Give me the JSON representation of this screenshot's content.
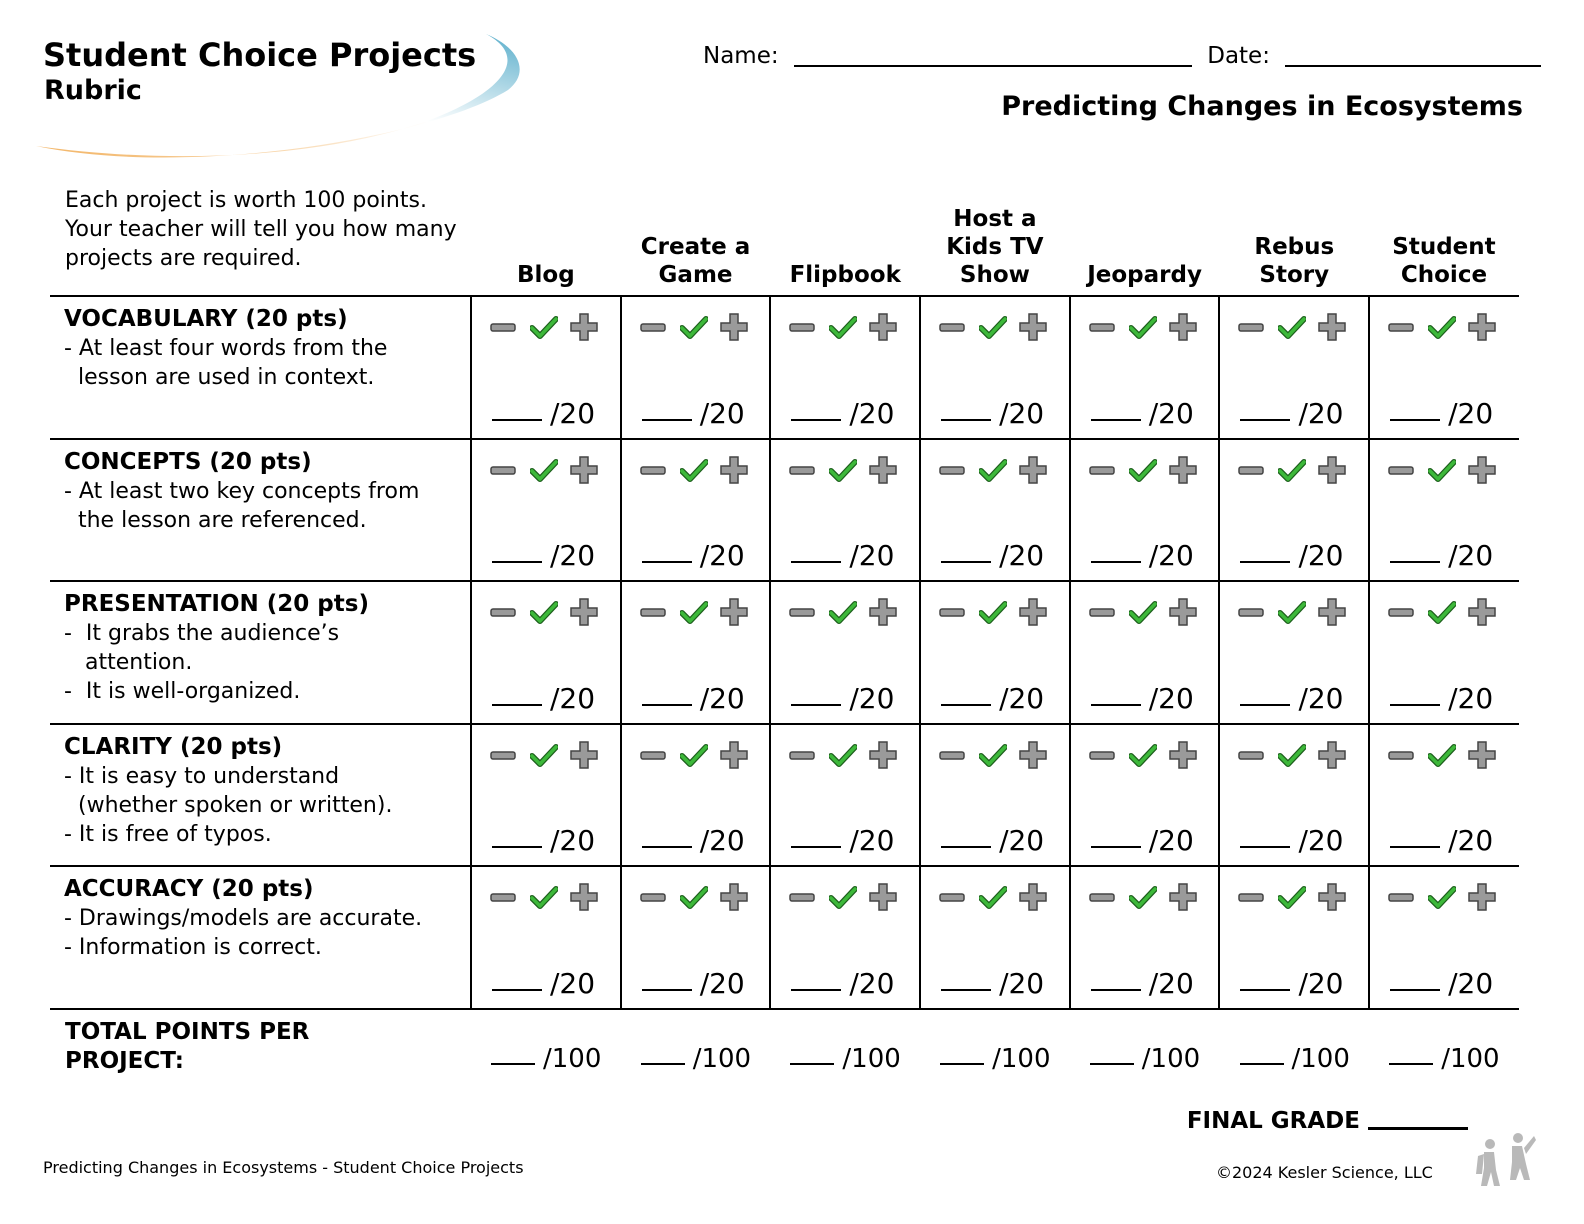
{
  "header": {
    "title": "Student Choice Projects",
    "subtitle": "Rubric",
    "name_label": "Name:",
    "date_label": "Date:",
    "topic": "Predicting Changes in Ecosystems"
  },
  "intro": "Each project is worth 100 points. Your teacher will tell you how many projects are required.",
  "columns": [
    [
      "Blog"
    ],
    [
      "Create a",
      "Game"
    ],
    [
      "Flipbook"
    ],
    [
      "Host a",
      "Kids TV",
      "Show"
    ],
    [
      "Jeopardy"
    ],
    [
      "Rebus",
      "Story"
    ],
    [
      "Student",
      "Choice"
    ]
  ],
  "criteria": [
    {
      "title": "VOCABULARY (20 pts)",
      "lines": [
        "- At least four words from the",
        "  lesson are used in context."
      ],
      "score": "/20"
    },
    {
      "title": "CONCEPTS (20 pts)",
      "lines": [
        "- At least two key concepts from",
        "  the lesson are referenced."
      ],
      "score": "/20"
    },
    {
      "title": "PRESENTATION (20 pts)",
      "lines": [
        "-  It grabs the audience’s",
        "   attention.",
        "-  It is well-organized."
      ],
      "score": "/20"
    },
    {
      "title": "CLARITY (20 pts)",
      "lines": [
        "- It is easy to understand",
        "  (whether spoken or written).",
        "- It is free of typos."
      ],
      "score": "/20"
    },
    {
      "title": "ACCURACY (20 pts)",
      "lines": [
        "- Drawings/models are accurate.",
        "- Information is correct."
      ],
      "score": "/20"
    }
  ],
  "icons": [
    "minus-icon",
    "check-icon",
    "plus-icon"
  ],
  "colors": {
    "check": "#3db83a",
    "icon_gray": "#9a9a9a",
    "swoosh_blue": "#5aaecb",
    "swoosh_orange": "#f2b15e"
  },
  "totals": {
    "label": "TOTAL POINTS PER PROJECT:",
    "score": "/100"
  },
  "final_grade_label": "FINAL GRADE",
  "footer": {
    "left": "Predicting Changes in Ecosystems - Student Choice Projects",
    "right": "©2024  Kesler Science, LLC"
  }
}
